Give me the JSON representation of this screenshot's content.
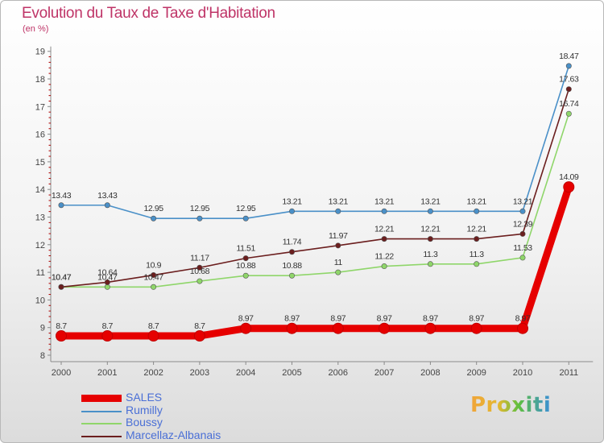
{
  "title": "Evolution du Taux de Taxe d'Habitation",
  "subtitle": "(en %)",
  "logo_text": "Proxiti",
  "chart_data": {
    "type": "line",
    "x": [
      "2000",
      "2001",
      "2002",
      "2003",
      "2004",
      "2005",
      "2006",
      "2007",
      "2008",
      "2009",
      "2010",
      "2011"
    ],
    "ylim": [
      8,
      19
    ],
    "yticks": [
      "8",
      "9",
      "10",
      "11",
      "12",
      "13",
      "14",
      "15",
      "16",
      "17",
      "18",
      "19"
    ],
    "series": [
      {
        "name": "SALES",
        "color": "#e60000",
        "values": [
          8.7,
          8.7,
          8.7,
          8.7,
          8.97,
          8.97,
          8.97,
          8.97,
          8.97,
          8.97,
          8.97,
          14.09
        ],
        "labels": [
          "8.7",
          "8.7",
          "8.7",
          "8.7",
          "8.97",
          "8.97",
          "8.97",
          "8.97",
          "8.97",
          "8.97",
          "8.97",
          "14.09"
        ]
      },
      {
        "name": "Rumilly",
        "color": "#4a90c8",
        "values": [
          13.43,
          13.43,
          12.95,
          12.95,
          12.95,
          13.21,
          13.21,
          13.21,
          13.21,
          13.21,
          13.21,
          18.47
        ],
        "labels": [
          "13.43",
          "13.43",
          "12.95",
          "12.95",
          "12.95",
          "13.21",
          "13.21",
          "13.21",
          "13.21",
          "13.21",
          "13.21",
          "18.47"
        ]
      },
      {
        "name": "Boussy",
        "color": "#8fd66a",
        "values": [
          10.47,
          10.47,
          10.47,
          10.68,
          10.88,
          10.88,
          11,
          11.22,
          11.3,
          11.3,
          11.53,
          16.74
        ],
        "labels": [
          "10.47",
          "10.47",
          "10.47",
          "10.68",
          "10.88",
          "10.88",
          "11",
          "11.22",
          "11.3",
          "11.3",
          "11.53",
          "16.74"
        ]
      },
      {
        "name": "Marcellaz-Albanais",
        "color": "#6b1e1e",
        "values": [
          10.47,
          10.64,
          10.9,
          11.17,
          11.51,
          11.74,
          11.97,
          12.21,
          12.21,
          12.21,
          12.39,
          17.63
        ],
        "labels": [
          "10.47",
          "10.64",
          "10.9",
          "11.17",
          "11.51",
          "11.74",
          "11.97",
          "12.21",
          "12.21",
          "12.21",
          "12.39",
          "17.63"
        ]
      }
    ],
    "grid": false,
    "legend_position": "bottom-left"
  }
}
